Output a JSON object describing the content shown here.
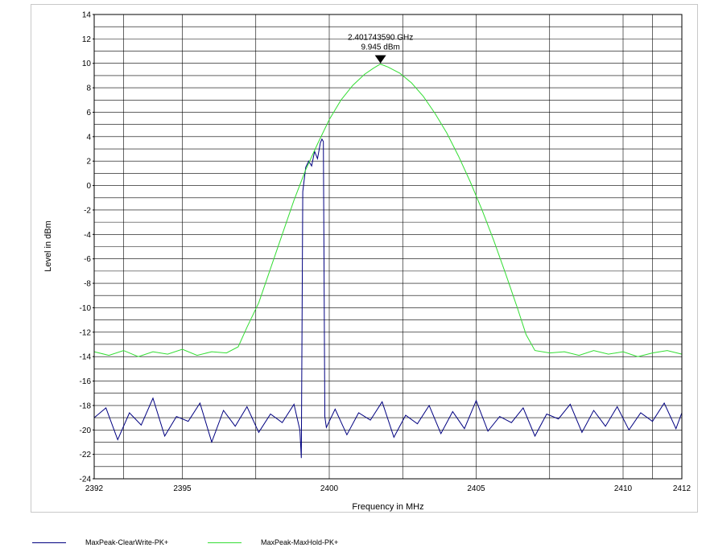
{
  "chart_data": {
    "type": "line",
    "title": "",
    "xlabel": "Frequency in MHz",
    "ylabel": "Level in dBm",
    "xlim": [
      2392,
      2412
    ],
    "ylim": [
      -24,
      14
    ],
    "x_ticks": [
      2392,
      2395,
      2400,
      2405,
      2410,
      2412
    ],
    "x_tick_labels": [
      "2392",
      "2395",
      "2400",
      "2405",
      "2410",
      "2412"
    ],
    "y_ticks": [
      -24,
      -22,
      -20,
      -18,
      -16,
      -14,
      -12,
      -10,
      -8,
      -6,
      -4,
      -2,
      0,
      2,
      4,
      6,
      8,
      10,
      12,
      14
    ],
    "y_tick_labels": [
      "-24",
      "-22",
      "-20",
      "-18",
      "-16",
      "-14",
      "-12",
      "-10",
      "-8",
      "-6",
      "-4",
      "-2",
      "0",
      "2",
      "4",
      "6",
      "8",
      "10",
      "12",
      "14"
    ],
    "grid": true,
    "legend_position": "bottom",
    "marker": {
      "x": 2401.74359,
      "y": 9.945,
      "freq_label": "2.401743590 GHz",
      "level_label": "9.945 dBm"
    },
    "series": [
      {
        "name": "MaxPeak-ClearWrite-PK+",
        "color": "#000080",
        "x": [
          2392.0,
          2392.4,
          2392.8,
          2393.2,
          2393.6,
          2394.0,
          2394.4,
          2394.8,
          2395.2,
          2395.6,
          2396.0,
          2396.4,
          2396.8,
          2397.2,
          2397.6,
          2398.0,
          2398.4,
          2398.8,
          2399.0,
          2399.05,
          2399.1,
          2399.2,
          2399.3,
          2399.4,
          2399.5,
          2399.6,
          2399.7,
          2399.75,
          2399.8,
          2399.85,
          2399.9,
          2400.2,
          2400.6,
          2401.0,
          2401.4,
          2401.8,
          2402.2,
          2402.6,
          2403.0,
          2403.4,
          2403.8,
          2404.2,
          2404.6,
          2405.0,
          2405.4,
          2405.8,
          2406.2,
          2406.6,
          2407.0,
          2407.4,
          2407.8,
          2408.2,
          2408.6,
          2409.0,
          2409.4,
          2409.8,
          2410.2,
          2410.6,
          2411.0,
          2411.4,
          2411.8,
          2412.0
        ],
        "y": [
          -19.0,
          -18.2,
          -20.8,
          -18.6,
          -19.6,
          -17.4,
          -20.5,
          -18.9,
          -19.3,
          -17.8,
          -21.0,
          -18.4,
          -19.7,
          -18.1,
          -20.2,
          -18.7,
          -19.4,
          -17.9,
          -20.0,
          -22.3,
          -0.5,
          1.5,
          2.0,
          1.6,
          2.8,
          2.2,
          3.5,
          3.8,
          3.6,
          -18.9,
          -19.8,
          -18.3,
          -20.4,
          -18.6,
          -19.2,
          -17.7,
          -20.6,
          -18.8,
          -19.5,
          -18.0,
          -20.3,
          -18.5,
          -19.9,
          -17.6,
          -20.1,
          -18.9,
          -19.4,
          -18.2,
          -20.5,
          -18.7,
          -19.1,
          -17.9,
          -20.2,
          -18.4,
          -19.7,
          -18.1,
          -20.0,
          -18.6,
          -19.3,
          -17.8,
          -19.9,
          -18.6
        ]
      },
      {
        "name": "MaxPeak-MaxHold-PK+",
        "color": "#33dd33",
        "x": [
          2392.0,
          2392.5,
          2393.0,
          2393.5,
          2394.0,
          2394.5,
          2395.0,
          2395.5,
          2396.0,
          2396.5,
          2396.9,
          2397.2,
          2397.6,
          2398.0,
          2398.4,
          2398.8,
          2399.2,
          2399.6,
          2400.0,
          2400.4,
          2400.8,
          2401.2,
          2401.5,
          2401.74,
          2402.0,
          2402.4,
          2402.8,
          2403.2,
          2403.6,
          2404.0,
          2404.4,
          2404.8,
          2405.2,
          2405.6,
          2406.0,
          2406.4,
          2406.7,
          2407.0,
          2407.5,
          2408.0,
          2408.5,
          2409.0,
          2409.5,
          2410.0,
          2410.5,
          2411.0,
          2411.5,
          2412.0
        ],
        "y": [
          -13.6,
          -13.9,
          -13.5,
          -14.0,
          -13.6,
          -13.8,
          -13.4,
          -13.9,
          -13.6,
          -13.7,
          -13.2,
          -11.6,
          -9.6,
          -6.8,
          -4.0,
          -1.2,
          1.3,
          3.4,
          5.4,
          7.0,
          8.2,
          9.1,
          9.6,
          9.945,
          9.7,
          9.2,
          8.4,
          7.3,
          5.9,
          4.3,
          2.4,
          0.3,
          -2.0,
          -4.5,
          -7.2,
          -10.0,
          -12.2,
          -13.5,
          -13.7,
          -13.6,
          -13.9,
          -13.5,
          -13.8,
          -13.6,
          -14.0,
          -13.7,
          -13.5,
          -13.8
        ]
      }
    ]
  }
}
